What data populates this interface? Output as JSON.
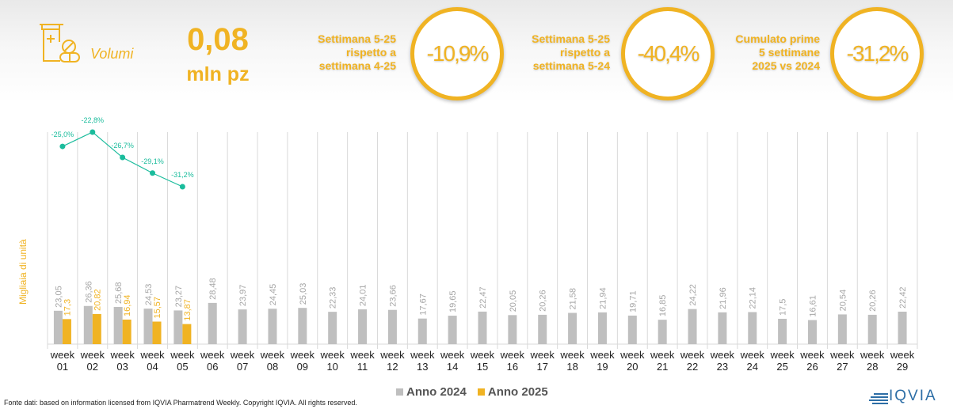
{
  "kpi": {
    "icon": "medicine-bottle-pills-icon",
    "label": "Volumi",
    "value": "0,08",
    "unit": "mln pz"
  },
  "comparisons": [
    {
      "label_lines": [
        "Settimana 5-25",
        "rispetto a",
        "settimana 4-25"
      ],
      "value": "-10,9%"
    },
    {
      "label_lines": [
        "Settimana 5-25",
        "rispetto a",
        "settimana 5-24"
      ],
      "value": "-40,4%"
    },
    {
      "label_lines": [
        "Cumulato prime",
        "5 settimane",
        "2025 vs 2024"
      ],
      "value": "-31,2%"
    }
  ],
  "colors": {
    "accent": "#f0b323",
    "series_2024": "#bfbfbf",
    "series_2025": "#f0b323",
    "line": "#1abc9c"
  },
  "chart_data": {
    "type": "bar",
    "title": "",
    "xlabel": "",
    "ylabel": "Migliaia di unità",
    "categories": [
      "week 01",
      "week 02",
      "week 03",
      "week 04",
      "week 05",
      "week 06",
      "week 07",
      "week 08",
      "week 09",
      "week 10",
      "week 11",
      "week 12",
      "week 13",
      "week 14",
      "week 15",
      "week 16",
      "week 17",
      "week 18",
      "week 19",
      "week 20",
      "week 21",
      "week 22",
      "week 23",
      "week 24",
      "week 25",
      "week 26",
      "week 27",
      "week 28",
      "week 29"
    ],
    "series": [
      {
        "name": "Anno 2024",
        "values": [
          23.05,
          26.36,
          25.68,
          24.53,
          23.27,
          28.48,
          23.97,
          24.45,
          25.03,
          22.33,
          24.01,
          23.66,
          17.67,
          19.65,
          22.47,
          20.05,
          20.26,
          21.58,
          21.94,
          19.71,
          16.85,
          24.22,
          21.96,
          22.14,
          17.5,
          16.61,
          20.54,
          20.26,
          22.42
        ],
        "labels": [
          "23,05",
          "26,36",
          "25,68",
          "24,53",
          "23,27",
          "28,48",
          "23,97",
          "24,45",
          "25,03",
          "22,33",
          "24,01",
          "23,66",
          "17,67",
          "19,65",
          "22,47",
          "20,05",
          "20,26",
          "21,58",
          "21,94",
          "19,71",
          "16,85",
          "24,22",
          "21,96",
          "22,14",
          "17,5",
          "16,61",
          "20,54",
          "20,26",
          "22,42"
        ]
      },
      {
        "name": "Anno 2025",
        "values": [
          17.3,
          20.82,
          16.94,
          15.57,
          13.87
        ],
        "labels": [
          "17,3",
          "20,82",
          "16,94",
          "15,57",
          "13,87"
        ]
      }
    ],
    "line_series": {
      "name": "Cumulato 2025 vs 2024",
      "type": "line",
      "values": [
        -25.0,
        -22.8,
        -26.7,
        -29.1,
        -31.2
      ],
      "labels": [
        "-25,0%",
        "-22,8%",
        "-26,7%",
        "-29,1%",
        "-31,2%"
      ]
    },
    "ylim": [
      0,
      30
    ],
    "grid": "vertical category separators",
    "legend": "bottom-center"
  },
  "legend": {
    "items": [
      {
        "label": "Anno 2024"
      },
      {
        "label": "Anno 2025"
      }
    ]
  },
  "footer": {
    "source": "Fonte dati: based on information licensed from IQVIA Pharmatrend Weekly. Copyright IQVIA. All rights reserved.",
    "logo": "IQVIA"
  }
}
